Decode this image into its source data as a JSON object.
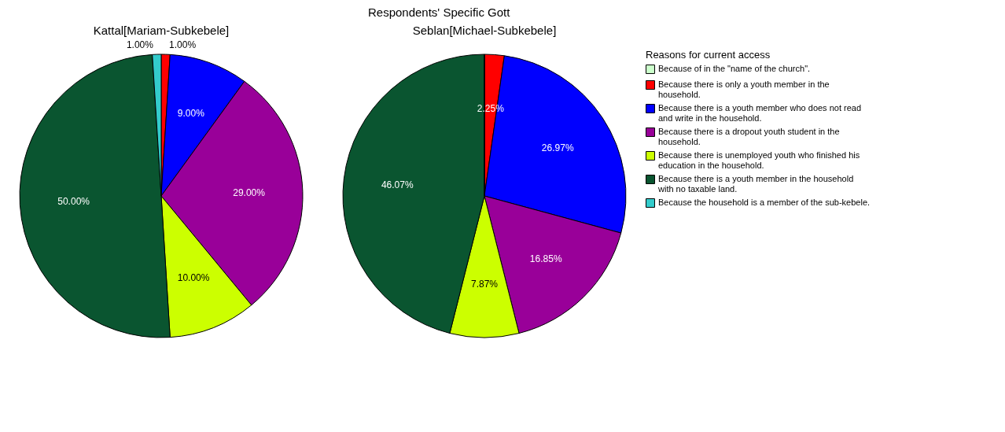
{
  "chart_data": {
    "type": "pie",
    "title": "Respondents' Specific Gott",
    "legend_title": "Reasons for current access",
    "legend": "right",
    "categories": [
      "Because of in the \"name of the church\".",
      "Because there is only a youth member in the household.",
      "Because there is a youth member who does not read and write in the household.",
      "Because there is a dropout youth student in the household.",
      "Because there is unemployed youth who finished his education in the household.",
      "Because there is a youth member in the household with no taxable land.",
      "Because the household is a member of the sub-kebele."
    ],
    "colors": [
      "#ccffcc",
      "#ff0000",
      "#0000ff",
      "#990099",
      "#ccff00",
      "#0a5530",
      "#33cccc"
    ],
    "series": [
      {
        "name": "Kattal[Mariam-Subkebele]",
        "values": [
          0,
          1,
          9,
          29,
          10,
          50,
          1
        ],
        "value_labels": [
          null,
          "1.00%",
          "9.00%",
          "29.00%",
          "10.00%",
          "50.00%",
          "1.00%"
        ]
      },
      {
        "name": "Seblan[Michael-Subkebele]",
        "values": [
          0,
          2.25,
          26.97,
          16.85,
          7.87,
          46.07,
          0
        ],
        "value_labels": [
          null,
          "2.25%",
          "26.97%",
          "16.85%",
          "7.87%",
          "46.07%",
          null
        ]
      }
    ]
  }
}
